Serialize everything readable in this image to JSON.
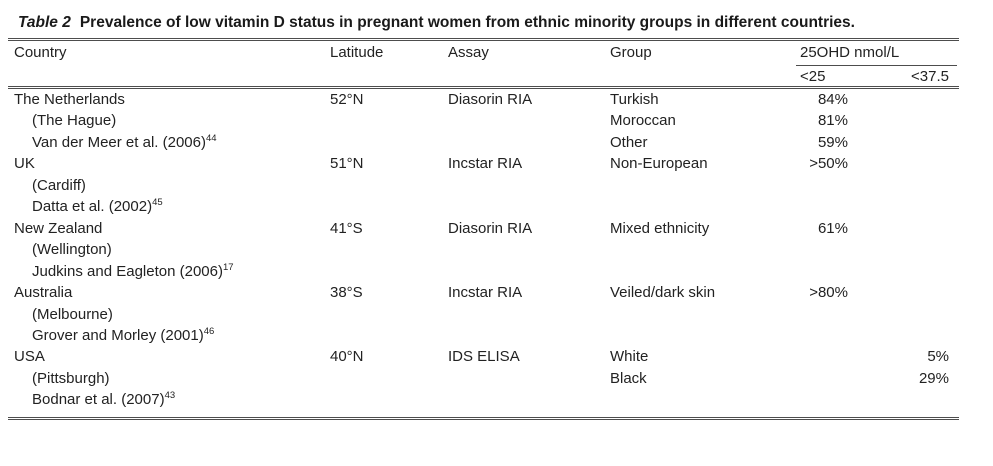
{
  "title": {
    "tag": "Table 2",
    "text": "Prevalence of low vitamin D status in pregnant women from ethnic minority groups in different countries."
  },
  "colors": {
    "text": "#222222",
    "rule": "#4d4d4d",
    "background": "#ffffff"
  },
  "table": {
    "columns": {
      "country": "Country",
      "latitude": "Latitude",
      "assay": "Assay",
      "group": "Group",
      "ohd_group": "25OHD nmol/L",
      "sub_under_25": "<25",
      "sub_under_37_5": "<37.5"
    },
    "rows": [
      {
        "country": "The Netherlands",
        "city": "(The Hague)",
        "reference": "Van der Meer et al. (2006)",
        "reference_superscript": "44",
        "latitude": "52°N",
        "assay": "Diasorin RIA",
        "lines": [
          {
            "group": "Turkish",
            "under_25": "84%",
            "under_37_5": ""
          },
          {
            "group": "Moroccan",
            "under_25": "81%",
            "under_37_5": ""
          },
          {
            "group": "Other",
            "under_25": "59%",
            "under_37_5": ""
          }
        ]
      },
      {
        "country": "UK",
        "city": "(Cardiff)",
        "reference": "Datta et al. (2002)",
        "reference_superscript": "45",
        "latitude": "51°N",
        "assay": "Incstar RIA",
        "lines": [
          {
            "group": "Non-European",
            "under_25": ">50%",
            "under_37_5": ""
          }
        ]
      },
      {
        "country": "New Zealand",
        "city": "(Wellington)",
        "reference": "Judkins and Eagleton (2006)",
        "reference_superscript": "17",
        "latitude": "41°S",
        "assay": "Diasorin RIA",
        "lines": [
          {
            "group": "Mixed ethnicity",
            "under_25": "61%",
            "under_37_5": ""
          }
        ]
      },
      {
        "country": "Australia",
        "city": "(Melbourne)",
        "reference": "Grover and Morley (2001)",
        "reference_superscript": "46",
        "latitude": "38°S",
        "assay": "Incstar RIA",
        "lines": [
          {
            "group": "Veiled/dark skin",
            "under_25": ">80%",
            "under_37_5": ""
          }
        ]
      },
      {
        "country": "USA",
        "city": "(Pittsburgh)",
        "reference": "Bodnar et al. (2007)",
        "reference_superscript": "43",
        "latitude": "40°N",
        "assay": "IDS ELISA",
        "lines": [
          {
            "group": "White",
            "under_25": "",
            "under_37_5": "5%"
          },
          {
            "group": "Black",
            "under_25": "",
            "under_37_5": "29%"
          }
        ]
      }
    ]
  }
}
